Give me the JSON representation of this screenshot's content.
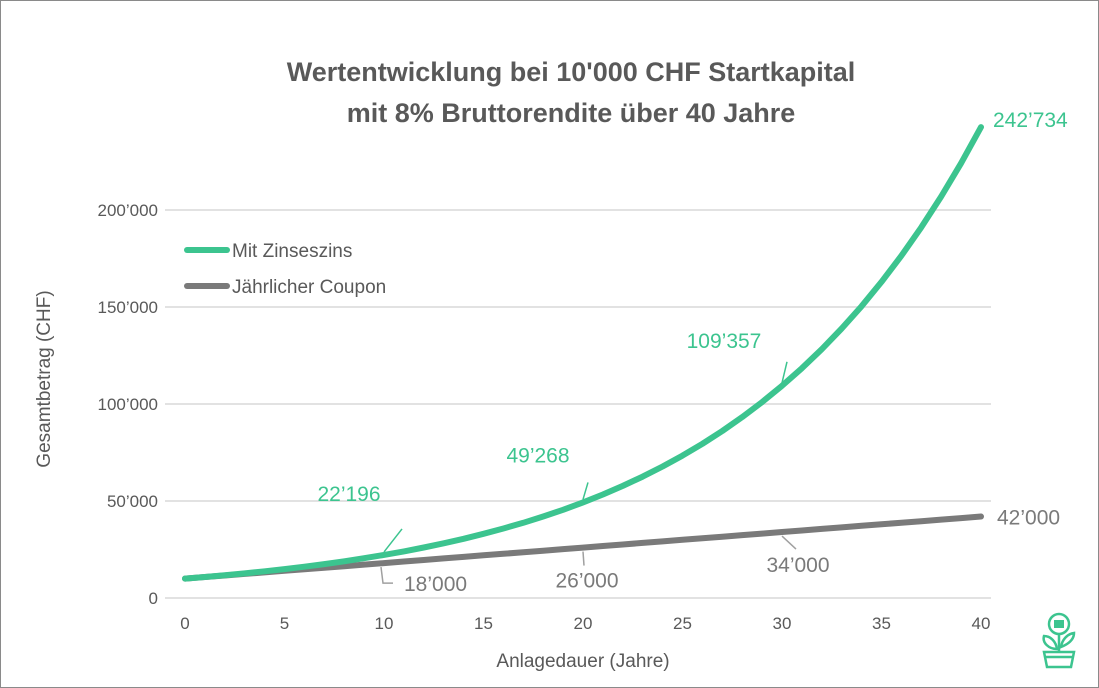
{
  "chart_data": {
    "type": "line",
    "title_line1": "Wertentwicklung bei 10'000 CHF Startkapital",
    "title_line2": "mit 8% Bruttorendite über 40 Jahre",
    "xlabel": "Anlagedauer (Jahre)",
    "ylabel": "Gesamtbetrag (CHF)",
    "xlim": [
      0,
      40
    ],
    "ylim": [
      0,
      200000
    ],
    "x_ticks": [
      0,
      5,
      10,
      15,
      20,
      25,
      30,
      35,
      40
    ],
    "y_ticks": [
      0,
      50000,
      100000,
      150000,
      200000
    ],
    "y_tick_labels": [
      "0",
      "50’000",
      "100’000",
      "150’000",
      "200’000"
    ],
    "grid": true,
    "legend_placement": "top-left",
    "x": [
      0,
      1,
      2,
      3,
      4,
      5,
      6,
      7,
      8,
      9,
      10,
      11,
      12,
      13,
      14,
      15,
      16,
      17,
      18,
      19,
      20,
      21,
      22,
      23,
      24,
      25,
      26,
      27,
      28,
      29,
      30,
      31,
      32,
      33,
      34,
      35,
      36,
      37,
      38,
      39,
      40
    ],
    "series": [
      {
        "name": "Mit Zinseszins",
        "color": "#3cc48f",
        "values": [
          10000,
          10830,
          11729,
          12702,
          13756,
          14898,
          16134,
          17473,
          18923,
          20494,
          22196,
          24038,
          26033,
          28194,
          30534,
          33068,
          35812,
          38784,
          42003,
          45489,
          49268,
          53357,
          57785,
          62581,
          67775,
          73400,
          79492,
          86089,
          93234,
          100972,
          109357,
          118433,
          128262,
          138907,
          150436,
          162921,
          176442,
          191086,
          206945,
          224120,
          242734
        ],
        "labels": [
          {
            "x": 10,
            "text": "22’196"
          },
          {
            "x": 20,
            "text": "49’268"
          },
          {
            "x": 30,
            "text": "109’357"
          },
          {
            "x": 40,
            "text": "242’734"
          }
        ]
      },
      {
        "name": "Jährlicher Coupon",
        "color": "#7a7a7a",
        "values": [
          10000,
          10800,
          11600,
          12400,
          13200,
          14000,
          14800,
          15600,
          16400,
          17200,
          18000,
          18800,
          19600,
          20400,
          21200,
          22000,
          22800,
          23600,
          24400,
          25200,
          26000,
          26800,
          27600,
          28400,
          29200,
          30000,
          30800,
          31600,
          32400,
          33200,
          34000,
          34800,
          35600,
          36400,
          37200,
          38000,
          38800,
          39600,
          40400,
          41200,
          42000
        ],
        "labels": [
          {
            "x": 10,
            "text": "18’000"
          },
          {
            "x": 20,
            "text": "26’000"
          },
          {
            "x": 30,
            "text": "34’000"
          },
          {
            "x": 40,
            "text": "42’000"
          }
        ]
      }
    ]
  },
  "logo": {
    "icon": "plant-coin-icon"
  }
}
